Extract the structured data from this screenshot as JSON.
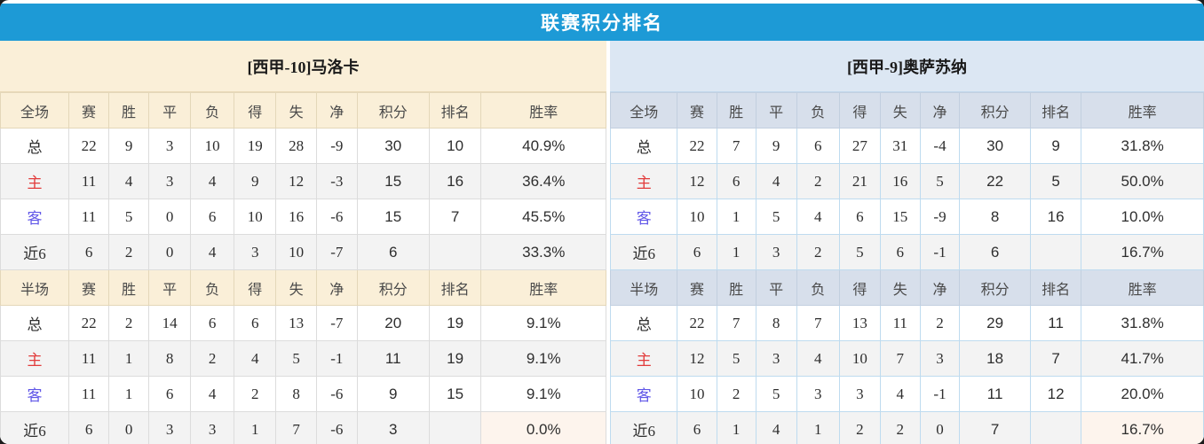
{
  "title": "联赛积分排名",
  "colors": {
    "title_bar": "#1d9ad6",
    "left_header_bg": "#faefd8",
    "right_team_header_bg": "#dce7f3",
    "right_column_header_bg": "#d7dfeb",
    "points_color": "#fb3c22",
    "winrate_color": "#fb3c22",
    "rank_color": "#3a8ddb",
    "home_label_color": "#e23b3b",
    "away_label_color": "#6157e8",
    "winrate_highlight_bg": "#fdf4ed",
    "row_alt_bg": "#f3f3f3"
  },
  "tables": [
    {
      "team": "[西甲-10]马洛卡",
      "sections": [
        {
          "header": [
            "全场",
            "赛",
            "胜",
            "平",
            "负",
            "得",
            "失",
            "净",
            "积分",
            "排名",
            "胜率"
          ],
          "rows": [
            {
              "label": "总",
              "kind": "total",
              "cells": [
                "22",
                "9",
                "3",
                "10",
                "19",
                "28",
                "-9"
              ],
              "points": "30",
              "rank": "10",
              "winrate": "40.9%"
            },
            {
              "label": "主",
              "kind": "home",
              "cells": [
                "11",
                "4",
                "3",
                "4",
                "9",
                "12",
                "-3"
              ],
              "points": "15",
              "rank": "16",
              "winrate": "36.4%"
            },
            {
              "label": "客",
              "kind": "away",
              "cells": [
                "11",
                "5",
                "0",
                "6",
                "10",
                "16",
                "-6"
              ],
              "points": "15",
              "rank": "7",
              "winrate": "45.5%"
            },
            {
              "label": "近6",
              "kind": "last6",
              "cells": [
                "6",
                "2",
                "0",
                "4",
                "3",
                "10",
                "-7"
              ],
              "points": "6",
              "rank": "",
              "winrate": "33.3%"
            }
          ]
        },
        {
          "header": [
            "半场",
            "赛",
            "胜",
            "平",
            "负",
            "得",
            "失",
            "净",
            "积分",
            "排名",
            "胜率"
          ],
          "rows": [
            {
              "label": "总",
              "kind": "total",
              "cells": [
                "22",
                "2",
                "14",
                "6",
                "6",
                "13",
                "-7"
              ],
              "points": "20",
              "rank": "19",
              "winrate": "9.1%"
            },
            {
              "label": "主",
              "kind": "home",
              "cells": [
                "11",
                "1",
                "8",
                "2",
                "4",
                "5",
                "-1"
              ],
              "points": "11",
              "rank": "19",
              "winrate": "9.1%"
            },
            {
              "label": "客",
              "kind": "away",
              "cells": [
                "11",
                "1",
                "6",
                "4",
                "2",
                "8",
                "-6"
              ],
              "points": "9",
              "rank": "15",
              "winrate": "9.1%"
            },
            {
              "label": "近6",
              "kind": "last6",
              "cells": [
                "6",
                "0",
                "3",
                "3",
                "1",
                "7",
                "-6"
              ],
              "points": "3",
              "rank": "",
              "winrate": "0.0%",
              "winrate_highlight": true
            }
          ]
        }
      ]
    },
    {
      "team": "[西甲-9]奥萨苏纳",
      "sections": [
        {
          "header": [
            "全场",
            "赛",
            "胜",
            "平",
            "负",
            "得",
            "失",
            "净",
            "积分",
            "排名",
            "胜率"
          ],
          "rows": [
            {
              "label": "总",
              "kind": "total",
              "cells": [
                "22",
                "7",
                "9",
                "6",
                "27",
                "31",
                "-4"
              ],
              "points": "30",
              "rank": "9",
              "winrate": "31.8%"
            },
            {
              "label": "主",
              "kind": "home",
              "cells": [
                "12",
                "6",
                "4",
                "2",
                "21",
                "16",
                "5"
              ],
              "points": "22",
              "rank": "5",
              "winrate": "50.0%"
            },
            {
              "label": "客",
              "kind": "away",
              "cells": [
                "10",
                "1",
                "5",
                "4",
                "6",
                "15",
                "-9"
              ],
              "points": "8",
              "rank": "16",
              "winrate": "10.0%"
            },
            {
              "label": "近6",
              "kind": "last6",
              "cells": [
                "6",
                "1",
                "3",
                "2",
                "5",
                "6",
                "-1"
              ],
              "points": "6",
              "rank": "",
              "winrate": "16.7%"
            }
          ]
        },
        {
          "header": [
            "半场",
            "赛",
            "胜",
            "平",
            "负",
            "得",
            "失",
            "净",
            "积分",
            "排名",
            "胜率"
          ],
          "rows": [
            {
              "label": "总",
              "kind": "total",
              "cells": [
                "22",
                "7",
                "8",
                "7",
                "13",
                "11",
                "2"
              ],
              "points": "29",
              "rank": "11",
              "winrate": "31.8%"
            },
            {
              "label": "主",
              "kind": "home",
              "cells": [
                "12",
                "5",
                "3",
                "4",
                "10",
                "7",
                "3"
              ],
              "points": "18",
              "rank": "7",
              "winrate": "41.7%"
            },
            {
              "label": "客",
              "kind": "away",
              "cells": [
                "10",
                "2",
                "5",
                "3",
                "3",
                "4",
                "-1"
              ],
              "points": "11",
              "rank": "12",
              "winrate": "20.0%"
            },
            {
              "label": "近6",
              "kind": "last6",
              "cells": [
                "6",
                "1",
                "4",
                "1",
                "2",
                "2",
                "0"
              ],
              "points": "7",
              "rank": "",
              "winrate": "16.7%",
              "winrate_highlight": true
            }
          ]
        }
      ]
    }
  ],
  "column_widths": [
    "11.3%",
    "6.6%",
    "6.6%",
    "6.9%",
    "7.2%",
    "6.9%",
    "6.7%",
    "6.7%",
    "11.9%",
    "8.6%",
    "20.6%"
  ]
}
